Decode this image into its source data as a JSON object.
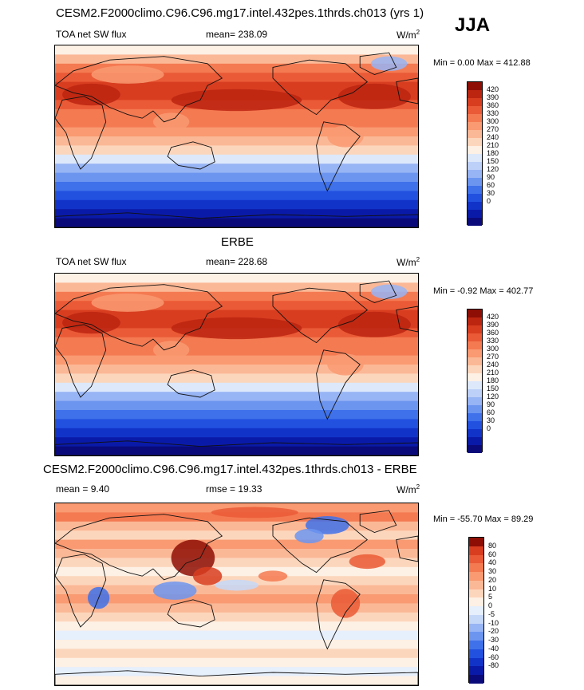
{
  "season": "JJA",
  "palette": {
    "seq": [
      "#0a0a7a",
      "#0a1aa8",
      "#1233c8",
      "#2251e0",
      "#3f71ea",
      "#6c95f0",
      "#97b4f4",
      "#bdd0f7",
      "#dde8fb",
      "#fdf0e4",
      "#fcd6bc",
      "#fbb896",
      "#f99a72",
      "#f47a52",
      "#ea5a36",
      "#d83d20",
      "#bc2510",
      "#8e0e05"
    ],
    "diff": [
      "#0a0a7a",
      "#0a1aa8",
      "#1233c8",
      "#2251e0",
      "#3f71ea",
      "#6c95f0",
      "#97b4f4",
      "#c6d8f8",
      "#e6effc",
      "#fdf0e4",
      "#fcd6bc",
      "#fbb896",
      "#f99a72",
      "#f47a52",
      "#ea5a36",
      "#d83d20",
      "#8e0e05"
    ]
  },
  "panels": [
    {
      "title": "CESM2.F2000climo.C96.C96.mg17.intel.432pes.1thrds.ch013 (yrs 1)",
      "variable": "TOA net SW flux",
      "stat_text": "mean= 238.09",
      "units": "W/m",
      "units_sup": "2",
      "min_text": "Min =   0.00",
      "max_text": "Max = 412.88",
      "levels": [
        "420",
        "390",
        "360",
        "330",
        "300",
        "270",
        "240",
        "210",
        "180",
        "150",
        "120",
        "90",
        "60",
        "30",
        "0"
      ]
    },
    {
      "title": "ERBE",
      "variable": "TOA net SW flux",
      "stat_text": "mean= 228.68",
      "units": "W/m",
      "units_sup": "2",
      "min_text": "Min =  -0.92",
      "max_text": "Max = 402.77",
      "levels": [
        "420",
        "390",
        "360",
        "330",
        "300",
        "270",
        "240",
        "210",
        "180",
        "150",
        "120",
        "90",
        "60",
        "30",
        "0"
      ]
    },
    {
      "title": "CESM2.F2000climo.C96.C96.mg17.intel.432pes.1thrds.ch013 - ERBE",
      "mean_text": "mean =   9.40",
      "rmse_text": "rmse =  19.33",
      "units": "W/m",
      "units_sup": "2",
      "min_text": "Min = -55.70",
      "max_text": "Max =  89.29",
      "levels": [
        "80",
        "60",
        "40",
        "30",
        "20",
        "10",
        "5",
        "0",
        "-5",
        "-10",
        "-20",
        "-30",
        "-40",
        "-60",
        "-80"
      ]
    }
  ]
}
